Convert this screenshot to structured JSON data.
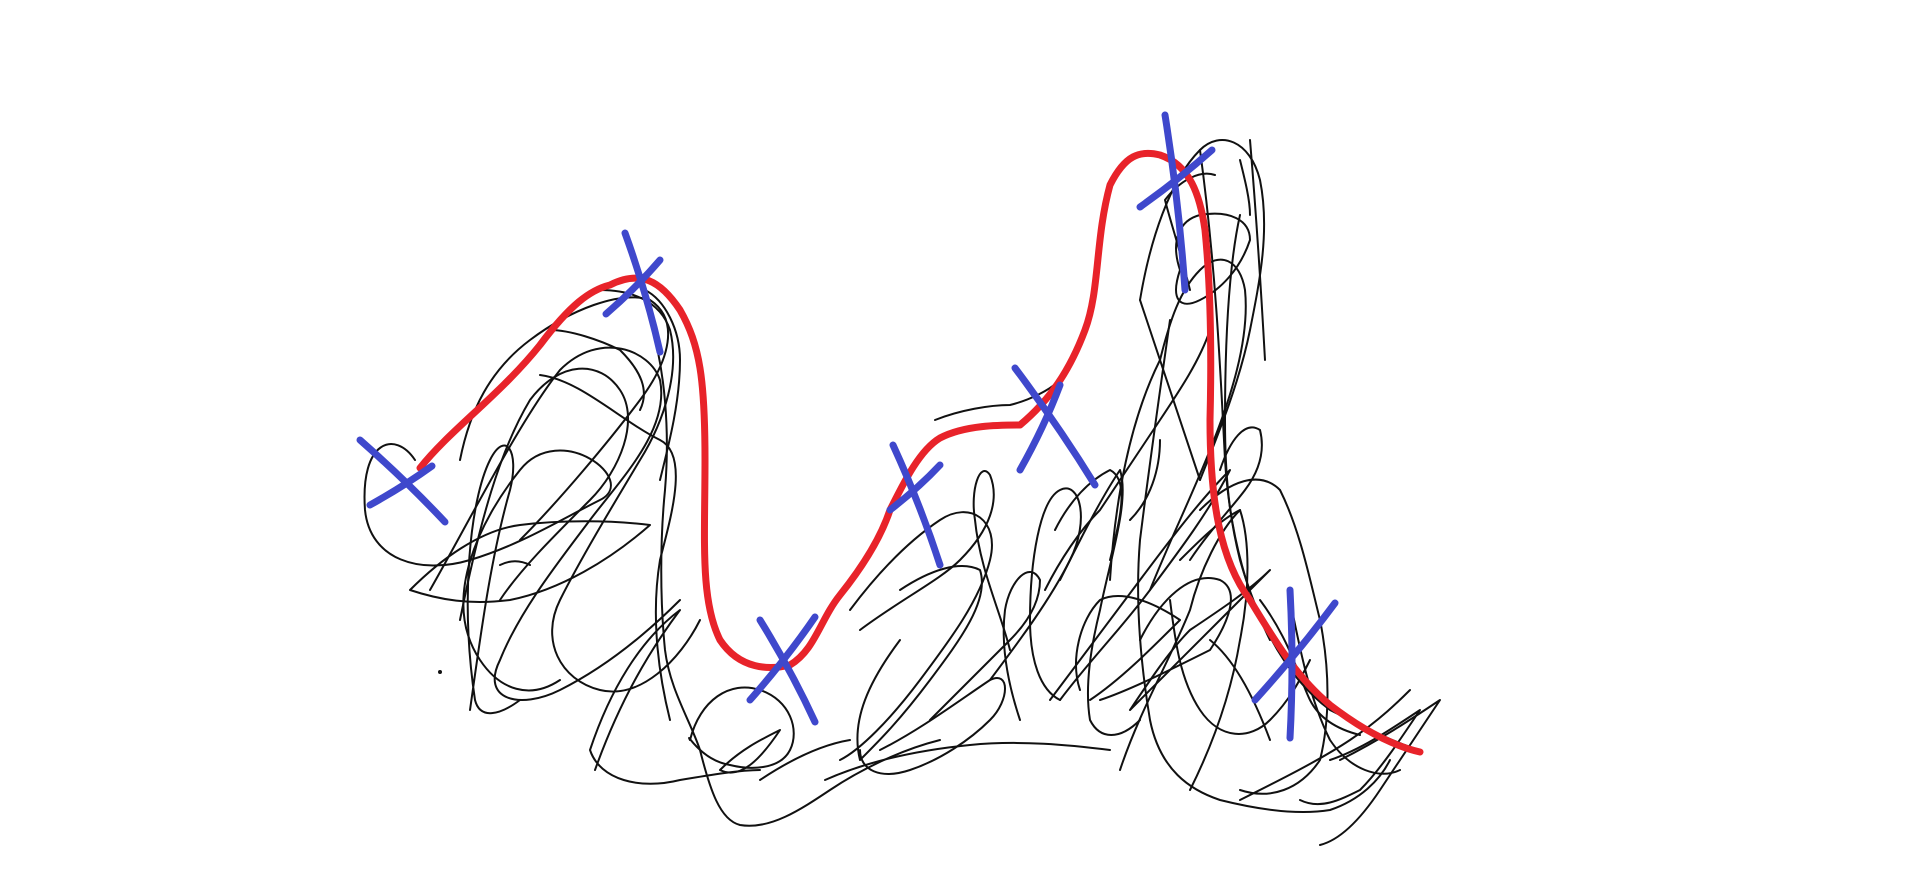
{
  "drawing": {
    "background_color": "#ffffff",
    "scribble_color": "#111111",
    "outline_color": "#e8232a",
    "marker_color": "#3f48cc",
    "marker_icon": "x-mark-icon",
    "marker_count": 7
  }
}
